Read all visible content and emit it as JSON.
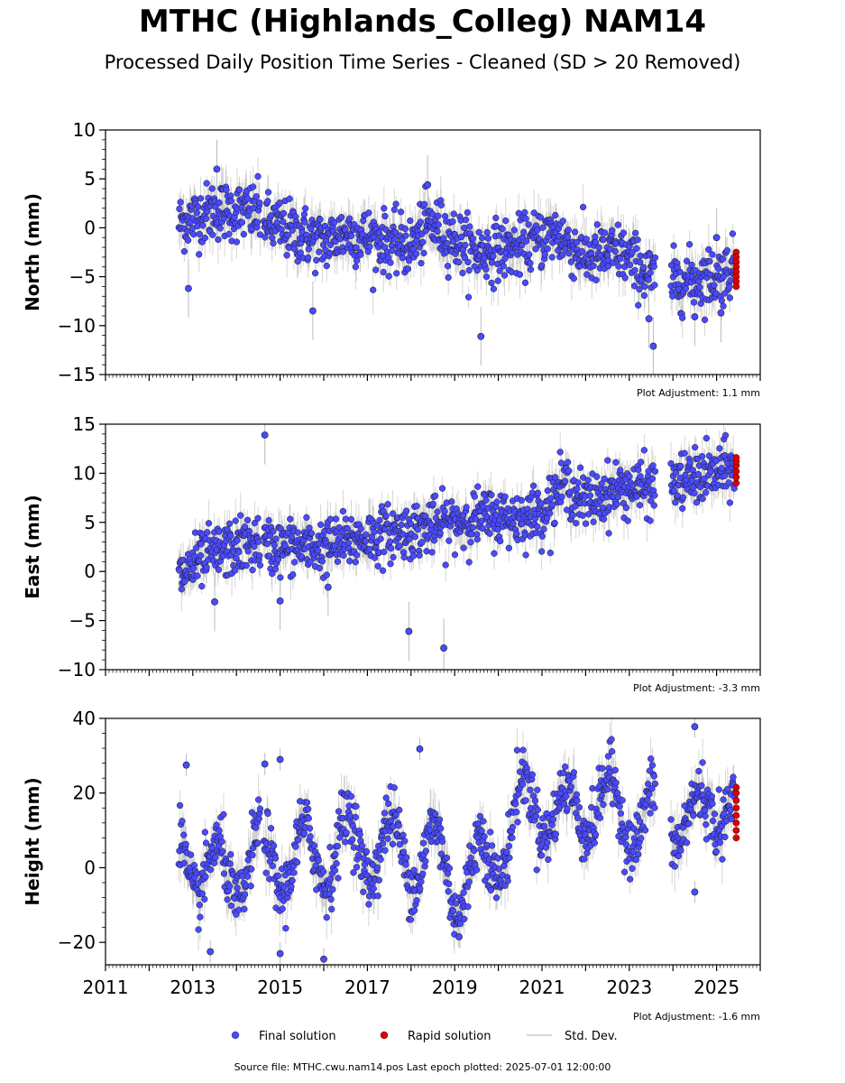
{
  "chart_data": {
    "title": "MTHC (Highlands_Colleg) NAM14",
    "subtitle": "Processed Daily Position Time Series - Cleaned (SD > 20 Removed)",
    "type": "scatter",
    "x_axis": {
      "range": [
        2011,
        2026
      ],
      "tick_labels": [
        "2011",
        "2013",
        "2015",
        "2017",
        "2019",
        "2021",
        "2023",
        "2025"
      ],
      "tick_values": [
        2011,
        2013,
        2015,
        2017,
        2019,
        2021,
        2023,
        2025
      ]
    },
    "legend": {
      "placement": "bottom-center",
      "entries": [
        {
          "label": "Final solution",
          "color": "#4a4aff"
        },
        {
          "label": "Rapid solution",
          "color": "#e00000"
        },
        {
          "label": "Std. Dev.",
          "color": "#cccccc"
        }
      ]
    },
    "footer": "Source file: MTHC.cwu.nam14.pos  Last epoch plotted: 2025-07-01 12:00:00",
    "panels": [
      {
        "ylabel": "North (mm)",
        "ylim": [
          -15,
          10
        ],
        "yticks": [
          10,
          5,
          0,
          -5,
          -10,
          -15
        ],
        "ytick_labels": [
          "10",
          "5",
          "0",
          "−5",
          "−10",
          "−15"
        ],
        "adjustment": "Plot Adjustment: 1.1 mm",
        "trend": [
          [
            2012.7,
            0.5
          ],
          [
            2013.5,
            1.8
          ],
          [
            2014.5,
            1.5
          ],
          [
            2014.7,
            0.5
          ],
          [
            2016.0,
            -1.5
          ],
          [
            2016.5,
            -0.5
          ],
          [
            2018.0,
            -2.0
          ],
          [
            2018.4,
            0.5
          ],
          [
            2019.5,
            -2.5
          ],
          [
            2020.5,
            -2.0
          ],
          [
            2021.3,
            -0.5
          ],
          [
            2022.0,
            -3.0
          ],
          [
            2022.8,
            -2.5
          ],
          [
            2023.5,
            -5.0
          ],
          [
            2024.0,
            -5.5
          ],
          [
            2025.0,
            -5.0
          ],
          [
            2025.45,
            -4.0
          ]
        ],
        "noise": 1.5,
        "outliers": [
          [
            2013.55,
            6.0
          ],
          [
            2012.9,
            -6.2
          ],
          [
            2015.75,
            -8.5
          ],
          [
            2018.38,
            4.4
          ],
          [
            2019.6,
            -11.1
          ],
          [
            2023.45,
            -9.3
          ],
          [
            2023.55,
            -12.1
          ],
          [
            2024.5,
            -9.1
          ],
          [
            2025.1,
            -8.7
          ],
          [
            2025.0,
            -1.0
          ]
        ],
        "rapid": {
          "x": 2025.45,
          "y": [
            -2.5,
            -3.0,
            -3.5,
            -4.0,
            -4.5,
            -5.0,
            -5.5,
            -6.0
          ]
        }
      },
      {
        "ylabel": "East (mm)",
        "ylim": [
          -10,
          15
        ],
        "yticks": [
          15,
          10,
          5,
          0,
          -5,
          -10
        ],
        "ytick_labels": [
          "15",
          "10",
          "5",
          "0",
          "−5",
          "−10"
        ],
        "adjustment": "Plot Adjustment: -3.3 mm",
        "trend": [
          [
            2012.7,
            -0.5
          ],
          [
            2013.3,
            1.5
          ],
          [
            2014.0,
            2.5
          ],
          [
            2014.5,
            3.0
          ],
          [
            2014.7,
            2.5
          ],
          [
            2016.0,
            2.5
          ],
          [
            2017.0,
            3.5
          ],
          [
            2018.4,
            4.5
          ],
          [
            2019.5,
            5.5
          ],
          [
            2020.5,
            5.5
          ],
          [
            2021.0,
            6.0
          ],
          [
            2021.5,
            9.0
          ],
          [
            2022.0,
            7.0
          ],
          [
            2022.8,
            8.5
          ],
          [
            2023.5,
            8.5
          ],
          [
            2024.0,
            9.0
          ],
          [
            2025.0,
            10.0
          ],
          [
            2025.45,
            10.5
          ]
        ],
        "noise": 1.4,
        "outliers": [
          [
            2014.65,
            13.9
          ],
          [
            2017.95,
            -6.1
          ],
          [
            2018.75,
            -7.8
          ],
          [
            2016.1,
            -1.6
          ],
          [
            2015.0,
            -3.0
          ],
          [
            2013.5,
            -3.1
          ]
        ],
        "rapid": {
          "x": 2025.45,
          "y": [
            9.0,
            9.6,
            10.2,
            10.8,
            11.2,
            11.6
          ]
        }
      },
      {
        "ylabel": "Height (mm)",
        "ylim": [
          -26,
          40
        ],
        "yticks": [
          40,
          20,
          0,
          -20
        ],
        "ytick_labels": [
          "40",
          "20",
          "0",
          "−20"
        ],
        "adjustment": "Plot Adjustment: -1.6 mm",
        "trend": [
          [
            2012.7,
            5.0
          ],
          [
            2013.5,
            -3.0
          ],
          [
            2014.5,
            2.0
          ],
          [
            2015.5,
            2.0
          ],
          [
            2016.5,
            6.0
          ],
          [
            2017.5,
            5.0
          ],
          [
            2018.5,
            3.0
          ],
          [
            2019.2,
            -5.0
          ],
          [
            2020.0,
            5.0
          ],
          [
            2020.5,
            15.0
          ],
          [
            2021.0,
            18.0
          ],
          [
            2021.5,
            12.0
          ],
          [
            2022.0,
            18.0
          ],
          [
            2022.8,
            15.0
          ],
          [
            2023.5,
            12.0
          ],
          [
            2024.0,
            15.0
          ],
          [
            2024.5,
            10.0
          ],
          [
            2025.0,
            20.0
          ],
          [
            2025.45,
            15.0
          ]
        ],
        "seasonal": 9,
        "noise": 4.0,
        "outliers": [
          [
            2012.85,
            27.5
          ],
          [
            2015.0,
            29.0
          ],
          [
            2014.65,
            27.8
          ],
          [
            2018.2,
            31.8
          ],
          [
            2024.5,
            37.8
          ],
          [
            2016.0,
            -24.5
          ],
          [
            2015.0,
            -23.0
          ],
          [
            2013.4,
            -22.5
          ],
          [
            2019.1,
            -18.5
          ],
          [
            2024.5,
            -6.5
          ]
        ],
        "rapid": {
          "x": 2025.45,
          "y": [
            8,
            10,
            12,
            14,
            16,
            18,
            20,
            21.5
          ]
        }
      }
    ],
    "data_gap": [
      2023.6,
      2023.95
    ]
  }
}
